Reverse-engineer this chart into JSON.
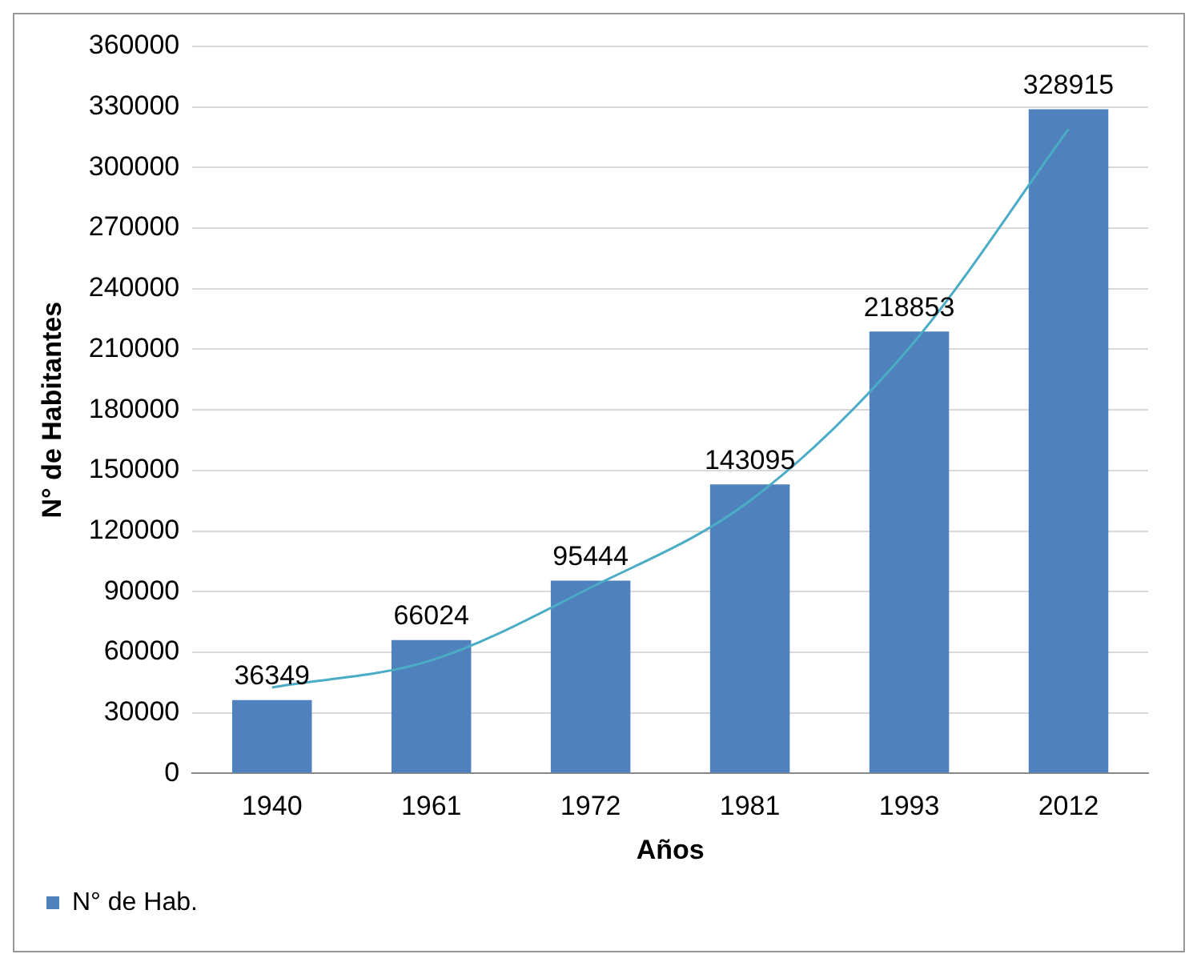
{
  "chart_data": {
    "type": "bar",
    "xlabel": "Años",
    "ylabel": "N° de Habitantes",
    "categories": [
      "1940",
      "1961",
      "1972",
      "1981",
      "1993",
      "2012"
    ],
    "series": [
      {
        "name": "N° de Hab.",
        "color": "#4f81bd",
        "values": [
          36349,
          66024,
          95444,
          143095,
          218853,
          328915
        ],
        "value_labels": [
          "36349",
          "66024",
          "95444",
          "143095",
          "218853",
          "328915"
        ]
      },
      {
        "type": "line",
        "color": "#4bacc6",
        "values": [
          42600,
          56000,
          92000,
          135000,
          210700,
          319000
        ],
        "marker": "none"
      }
    ],
    "ylim": [
      0,
      360000
    ],
    "yticks": [
      0,
      30000,
      60000,
      90000,
      120000,
      150000,
      180000,
      210000,
      240000,
      270000,
      300000,
      330000,
      360000
    ],
    "grid": "y",
    "legend": "bottom left"
  }
}
